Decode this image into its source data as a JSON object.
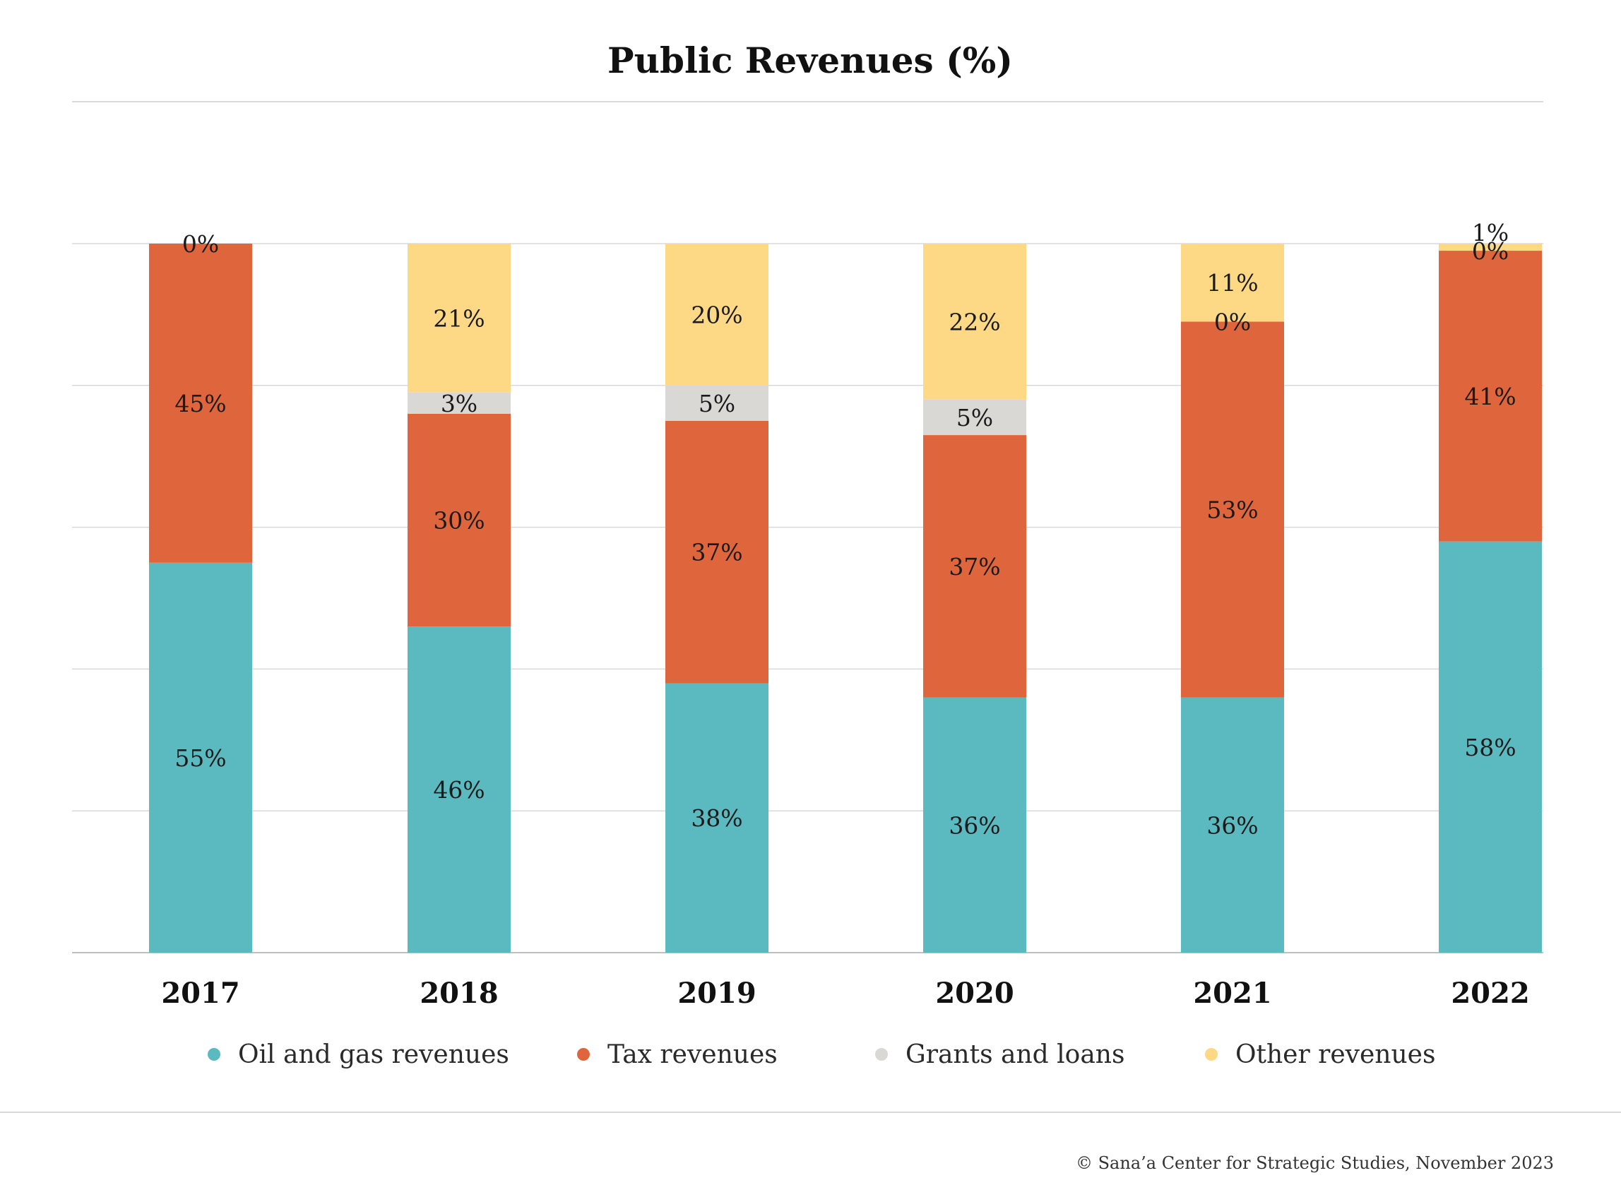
{
  "chart_data": {
    "type": "bar",
    "stacked": true,
    "title": "Public Revenues (%)",
    "categories": [
      "2017",
      "2018",
      "2019",
      "2020",
      "2021",
      "2022"
    ],
    "series": [
      {
        "name": "Oil and gas revenues",
        "color": "#5bb9c0",
        "values": [
          55,
          46,
          38,
          36,
          36,
          58
        ],
        "labels": [
          "55%",
          "46%",
          "38%",
          "36%",
          "36%",
          "58%"
        ]
      },
      {
        "name": "Tax revenues",
        "color": "#df663c",
        "values": [
          45,
          30,
          37,
          37,
          53,
          41
        ],
        "labels": [
          "45%",
          "30%",
          "37%",
          "37%",
          "53%",
          "41%"
        ]
      },
      {
        "name": "Grants and loans",
        "color": "#d9d8d5",
        "values": [
          0,
          3,
          5,
          5,
          0,
          0
        ],
        "labels": [
          "",
          "3%",
          "5%",
          "5%",
          "0%",
          "0%"
        ]
      },
      {
        "name": "Other revenues",
        "color": "#fdd985",
        "values": [
          0,
          21,
          20,
          22,
          11,
          1
        ],
        "labels": [
          "0%",
          "21%",
          "20%",
          "22%",
          "11%",
          "1%"
        ]
      }
    ],
    "ylim": [
      0,
      100
    ],
    "gridlines": [
      0,
      20,
      40,
      60,
      80,
      100
    ],
    "grid": true,
    "legend_position": "bottom"
  },
  "source": "© Sana’a Center for Strategic Studies, November 2023"
}
